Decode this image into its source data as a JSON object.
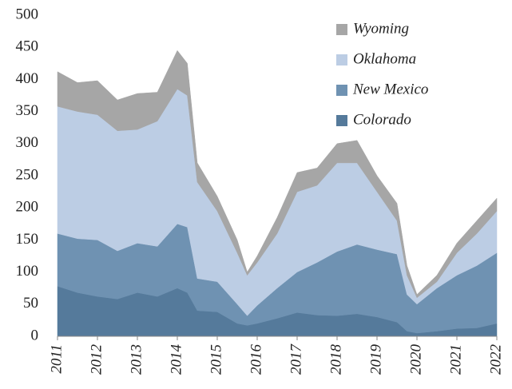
{
  "chart_data": {
    "type": "stacked_area",
    "x": [
      2011,
      2011.5,
      2012,
      2012.5,
      2013,
      2013.5,
      2014,
      2014.25,
      2014.5,
      2015,
      2015.5,
      2015.75,
      2016,
      2016.5,
      2017,
      2017.5,
      2018,
      2018.5,
      2019,
      2019.5,
      2019.75,
      2020,
      2020.5,
      2021,
      2021.5,
      2022
    ],
    "series": [
      {
        "name": "Colorado",
        "color": "#557a9b",
        "values": [
          78,
          68,
          62,
          58,
          68,
          62,
          75,
          68,
          40,
          38,
          20,
          17,
          20,
          28,
          37,
          33,
          32,
          35,
          30,
          22,
          8,
          5,
          8,
          12,
          13,
          20
        ]
      },
      {
        "name": "New Mexico",
        "color": "#6f92b2",
        "values": [
          82,
          84,
          88,
          75,
          77,
          78,
          100,
          102,
          50,
          47,
          30,
          15,
          28,
          47,
          63,
          82,
          100,
          108,
          105,
          106,
          57,
          45,
          67,
          83,
          97,
          110
        ]
      },
      {
        "name": "Oklahoma",
        "color": "#bccde4",
        "values": [
          198,
          198,
          195,
          187,
          177,
          195,
          210,
          205,
          150,
          110,
          80,
          63,
          67,
          85,
          125,
          120,
          138,
          127,
          90,
          52,
          30,
          10,
          10,
          35,
          50,
          65
        ]
      },
      {
        "name": "Wyoming",
        "color": "#a6a6a6",
        "values": [
          54,
          45,
          53,
          48,
          56,
          45,
          60,
          50,
          30,
          23,
          20,
          5,
          10,
          25,
          30,
          27,
          30,
          35,
          25,
          27,
          15,
          5,
          10,
          15,
          20,
          20
        ]
      }
    ],
    "xlim": [
      2011,
      2022
    ],
    "xticks": [
      2011,
      2012,
      2013,
      2014,
      2015,
      2016,
      2017,
      2018,
      2019,
      2020,
      2021,
      2022
    ],
    "ylim": [
      0,
      500
    ],
    "yticks": [
      0,
      50,
      100,
      150,
      200,
      250,
      300,
      350,
      400,
      450,
      500
    ],
    "grid": false,
    "legend": "upper right"
  }
}
